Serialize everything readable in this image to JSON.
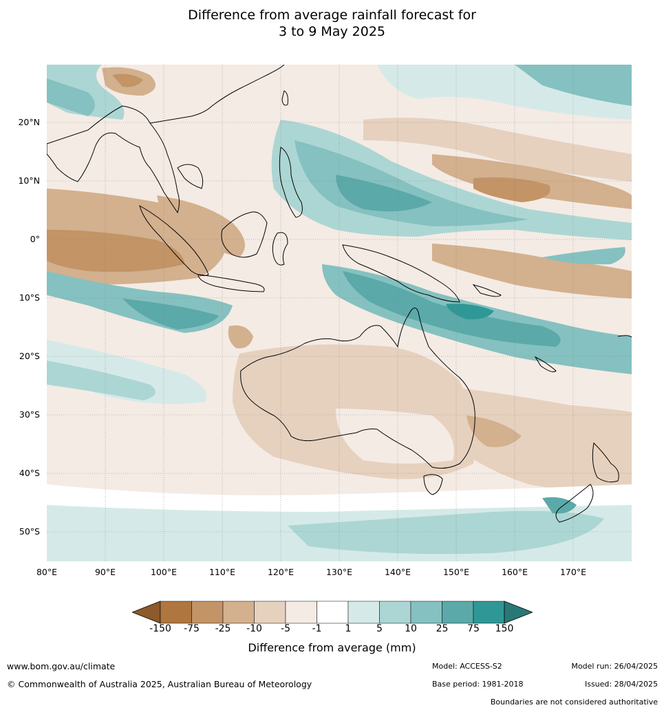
{
  "title": {
    "line1": "Difference from average rainfall forecast for",
    "line2": "3 to 9 May 2025"
  },
  "map": {
    "lat_labels": [
      "20°N",
      "10°N",
      "0°",
      "10°S",
      "20°S",
      "30°S",
      "40°S",
      "50°S"
    ],
    "lon_labels": [
      "80°E",
      "90°E",
      "100°E",
      "110°E",
      "120°E",
      "130°E",
      "140°E",
      "150°E",
      "160°E",
      "170°E"
    ]
  },
  "colorbar": {
    "label": "Difference from average (mm)",
    "ticks": [
      "-150",
      "-75",
      "-25",
      "-10",
      "-5",
      "-1",
      "1",
      "5",
      "10",
      "25",
      "75",
      "150"
    ],
    "colors": [
      "#8c5a2b",
      "#b07640",
      "#c29466",
      "#d3b08e",
      "#e6d1bf",
      "#f4ebe4",
      "#ffffff",
      "#d5eae8",
      "#acd6d4",
      "#85c1c0",
      "#5ba9a9",
      "#2f9897",
      "#2a7876"
    ]
  },
  "footer": {
    "website": "www.bom.gov.au/climate",
    "copyright": "© Commonwealth of Australia 2025, Australian Bureau of Meteorology",
    "model": "Model: ACCESS-S2",
    "base_period": "Base period: 1981-2018",
    "model_run": "Model run: 26/04/2025",
    "issued": "Issued: 28/04/2025",
    "disclaimer": "Boundaries are not considered authoritative"
  }
}
